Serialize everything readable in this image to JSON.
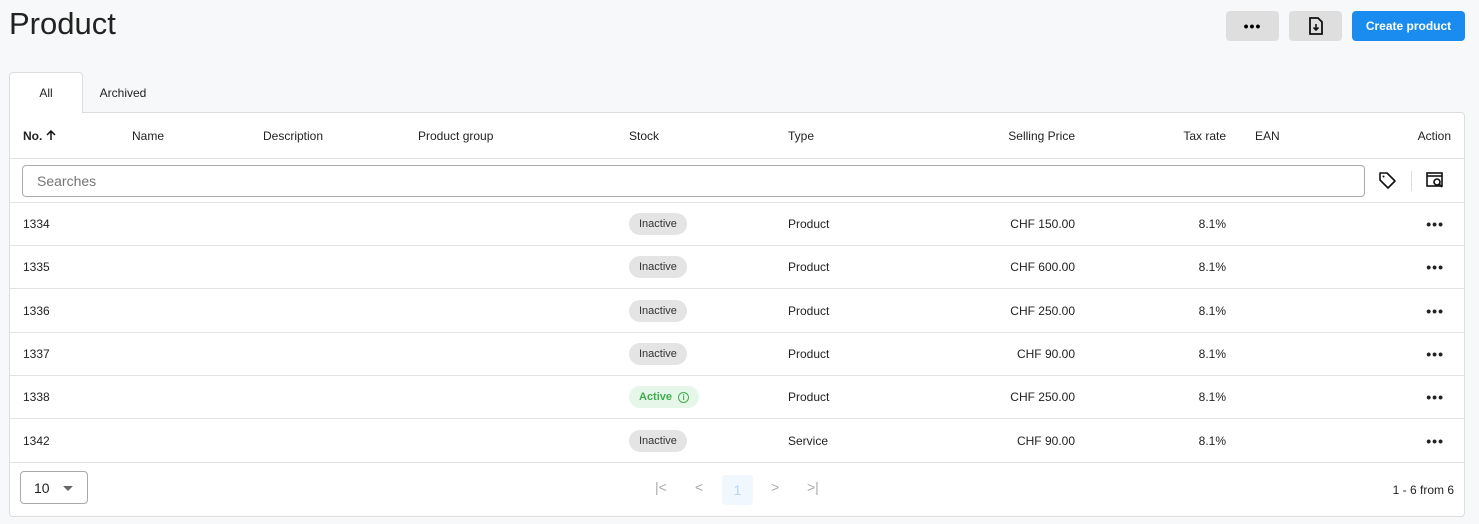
{
  "page": {
    "title": "Product"
  },
  "toolbar": {
    "more_label": "•••",
    "export_icon": "file-download-icon",
    "create_label": "Create product"
  },
  "tabs": [
    {
      "label": "All",
      "active": true
    },
    {
      "label": "Archived",
      "active": false
    }
  ],
  "table": {
    "columns": {
      "no": "No.",
      "name": "Name",
      "description": "Description",
      "product_group": "Product group",
      "stock": "Stock",
      "type": "Type",
      "selling_price": "Selling Price",
      "tax_rate": "Tax rate",
      "ean": "EAN",
      "action": "Action"
    },
    "sort": {
      "column": "No.",
      "direction": "ascending"
    },
    "search_placeholder": "Searches",
    "rows": [
      {
        "no": "1334",
        "stock": "Inactive",
        "type": "Product",
        "price": "CHF 150.00",
        "tax": "8.1%"
      },
      {
        "no": "1335",
        "stock": "Inactive",
        "type": "Product",
        "price": "CHF 600.00",
        "tax": "8.1%"
      },
      {
        "no": "1336",
        "stock": "Inactive",
        "type": "Product",
        "price": "CHF 250.00",
        "tax": "8.1%"
      },
      {
        "no": "1337",
        "stock": "Inactive",
        "type": "Product",
        "price": "CHF 90.00",
        "tax": "8.1%"
      },
      {
        "no": "1338",
        "stock": "Active",
        "type": "Product",
        "price": "CHF 250.00",
        "tax": "8.1%"
      },
      {
        "no": "1342",
        "stock": "Inactive",
        "type": "Service",
        "price": "CHF 90.00",
        "tax": "8.1%"
      }
    ],
    "row_action": "•••"
  },
  "footer": {
    "page_size": "10",
    "current_page": "1",
    "range": "1 - 6 from 6"
  },
  "colors": {
    "primary": "#1a8cf0",
    "active_green": "#3fae4f"
  }
}
